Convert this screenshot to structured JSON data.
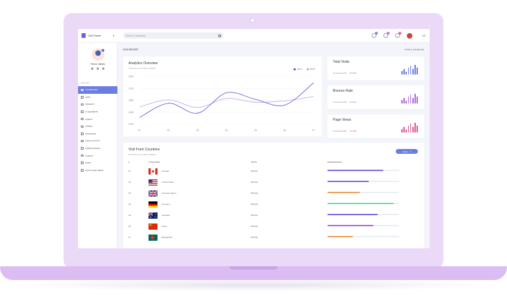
{
  "brand": {
    "name": "Cell Power"
  },
  "search": {
    "placeholder": "Search Dashboard"
  },
  "topbar": {
    "badges": [
      "4",
      "3",
      "2"
    ],
    "lang": "US"
  },
  "profile": {
    "name": "Trevor James"
  },
  "menu_title": "Personal",
  "menu": [
    {
      "label": "DASHBOARD",
      "active": true
    },
    {
      "label": "APPS",
      "active": false
    },
    {
      "label": "WIDGETS",
      "active": false
    },
    {
      "label": "UI ELEMENTS",
      "active": false
    },
    {
      "label": "FORMS",
      "active": false
    },
    {
      "label": "TABLES",
      "active": false
    },
    {
      "label": "ADVANCED",
      "active": false
    },
    {
      "label": "PAGE LAYOUTS",
      "active": false
    },
    {
      "label": "SAMPLE PAGES",
      "active": false
    },
    {
      "label": "CHARTS",
      "active": false
    },
    {
      "label": "MAPS",
      "active": false
    },
    {
      "label": "MULTI LEVEL MENU",
      "active": false
    }
  ],
  "breadcrumb": {
    "title": "DASHBOARD",
    "path": "Home  ▸  Dashboard"
  },
  "analytics": {
    "title": "Analytics Overview",
    "subtitle": "Overview of monthly analytics",
    "legend": [
      "Site A",
      "Site B"
    ]
  },
  "chart_data": {
    "type": "line",
    "x": [
      "01",
      "02",
      "03",
      "04",
      "05",
      "06",
      "07"
    ],
    "yticks": [
      "2000",
      "1750",
      "1500",
      "1250",
      "1000"
    ],
    "ylim": [
      1000,
      2000
    ],
    "series": [
      {
        "name": "Site A",
        "color": "#6c63d8",
        "values": [
          1140,
          1440,
          1230,
          1660,
          1520,
          1400,
          1870
        ]
      },
      {
        "name": "Site B",
        "color": "#c8a8ee",
        "values": [
          1360,
          1510,
          1350,
          1540,
          1460,
          1490,
          1580
        ]
      }
    ],
    "grid": true
  },
  "stats": [
    {
      "title": "Total Visits",
      "growth_label": "Overall Growth",
      "growth": "75.00%",
      "color": "#6a7de2",
      "bars": [
        0.35,
        0.55,
        0.3,
        0.75,
        0.9,
        0.6,
        1.0,
        0.7
      ]
    },
    {
      "title": "Bounce Rate",
      "growth_label": "Overall Growth",
      "growth": "75.00%",
      "color": "#b06ae0",
      "bars": [
        0.35,
        0.55,
        0.3,
        0.75,
        0.9,
        0.6,
        1.0,
        0.7
      ]
    },
    {
      "title": "Page Views",
      "growth_label": "Overall Growth",
      "growth": "75.00%",
      "color": "#e0568f",
      "bars": [
        0.35,
        0.55,
        0.3,
        0.75,
        0.9,
        0.6,
        1.0,
        0.7
      ]
    }
  ],
  "visits": {
    "title": "Visit From Countries",
    "subtitle": "Overview of monthly analytics",
    "export": "Export",
    "headers": {
      "num": "#",
      "country": "COUNTRIES",
      "visits": "VISITS",
      "pct": "PERCENTAGES"
    },
    "rows": [
      {
        "num": "01",
        "country": "Canada",
        "visits": "6452(3)",
        "pct": 0.78,
        "color": "#7a6fe0",
        "flag": "ca"
      },
      {
        "num": "02",
        "country": "United States",
        "visits": "6452(3)",
        "pct": 0.58,
        "color": "#7a6fe0",
        "flag": "us"
      },
      {
        "num": "03",
        "country": "United Kingdom",
        "visits": "6452(3)",
        "pct": 0.45,
        "color": "#f0a05a",
        "flag": "uk"
      },
      {
        "num": "04",
        "country": "Germany",
        "visits": "6452(3)",
        "pct": 0.92,
        "color": "#6fdcb0",
        "flag": "de"
      },
      {
        "num": "05",
        "country": "Australia",
        "visits": "6452(3)",
        "pct": 0.7,
        "color": "#7a6fe0",
        "flag": "au"
      },
      {
        "num": "06",
        "country": "China",
        "visits": "6452(3)",
        "pct": 0.64,
        "color": "#b06ae0",
        "flag": "cn"
      },
      {
        "num": "07",
        "country": "Bangladesh",
        "visits": "6452(3)",
        "pct": 0.36,
        "color": "#f0a05a",
        "flag": "bd"
      }
    ]
  }
}
